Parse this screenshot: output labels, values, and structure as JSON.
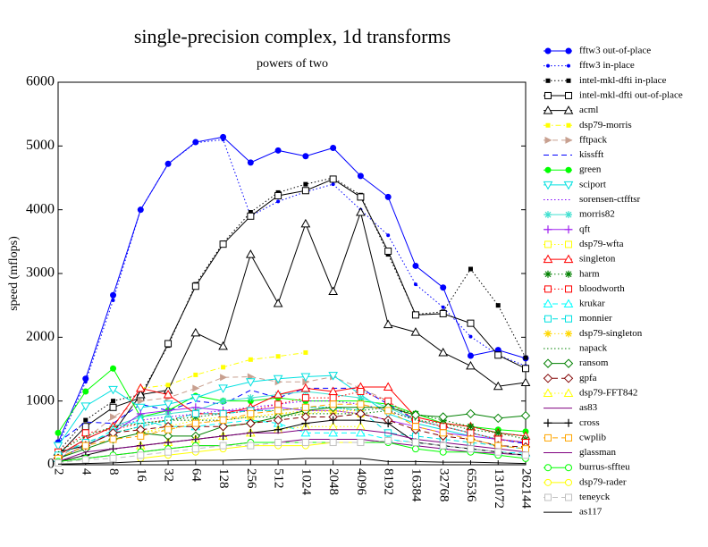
{
  "chart_data": {
    "type": "line",
    "title": "single-precision complex, 1d transforms",
    "subtitle": "powers of two",
    "ylabel": "speed (mflops)",
    "categories": [
      "2",
      "4",
      "8",
      "16",
      "32",
      "64",
      "128",
      "256",
      "512",
      "1024",
      "2048",
      "4096",
      "8192",
      "16384",
      "32768",
      "65536",
      "131072",
      "262144"
    ],
    "ylim": [
      0,
      6000
    ],
    "yticks": [
      0,
      1000,
      2000,
      3000,
      4000,
      5000,
      6000
    ],
    "grid": false,
    "legend": "right",
    "series": [
      {
        "name": "fftw3 out-of-place",
        "color": "#0000ff",
        "dash": "solid",
        "marker": "circle-filled",
        "values": [
          350,
          1350,
          2660,
          4000,
          4720,
          5060,
          5140,
          4740,
          4930,
          4840,
          4970,
          4530,
          4200,
          3120,
          2780,
          1710,
          1800,
          1670
        ]
      },
      {
        "name": "fftw3 in-place",
        "color": "#0000ff",
        "dash": "dotted",
        "marker": "dot",
        "values": [
          300,
          1300,
          2580,
          4000,
          4720,
          5050,
          5100,
          3900,
          4130,
          4280,
          4400,
          4000,
          3600,
          2830,
          2470,
          2010,
          1720,
          1550
        ]
      },
      {
        "name": "intel-mkl-dfti in-place",
        "color": "#000000",
        "dash": "dotted",
        "marker": "square-filled",
        "values": [
          200,
          700,
          1000,
          1100,
          1870,
          2830,
          3480,
          3960,
          4270,
          4400,
          4500,
          4230,
          3300,
          2360,
          2400,
          3070,
          2500,
          1680
        ]
      },
      {
        "name": "intel-mkl-dfti out-of-place",
        "color": "#000000",
        "dash": "solid",
        "marker": "square-open",
        "values": [
          150,
          600,
          900,
          1050,
          1900,
          2800,
          3460,
          3900,
          4220,
          4300,
          4480,
          4200,
          3350,
          2350,
          2370,
          2220,
          1720,
          1510
        ]
      },
      {
        "name": "acml",
        "color": "#000000",
        "dash": "solid",
        "marker": "triangle-open",
        "values": [
          200,
          300,
          500,
          1100,
          1170,
          2070,
          1860,
          3300,
          2530,
          3780,
          2720,
          3960,
          2200,
          2080,
          1760,
          1550,
          1230,
          1290
        ]
      },
      {
        "name": "dsp79-morris",
        "color": "#ffff00",
        "dash": "dashdot",
        "marker": "square-filled",
        "values": [
          null,
          null,
          null,
          1200,
          1250,
          1410,
          1530,
          1650,
          1700,
          1760,
          null,
          null,
          null,
          null,
          null,
          null,
          null,
          null
        ]
      },
      {
        "name": "fftpack",
        "color": "#c8a090",
        "dash": "dashed",
        "marker": "triangle-right",
        "values": [
          100,
          400,
          750,
          1000,
          1050,
          1200,
          1370,
          1380,
          1300,
          1300,
          1380,
          1200,
          1000,
          700,
          600,
          500,
          400,
          350
        ]
      },
      {
        "name": "kissfft",
        "color": "#0000ff",
        "dash": "dashed",
        "marker": "none",
        "values": [
          350,
          670,
          650,
          950,
          850,
          1000,
          950,
          1170,
          1050,
          1200,
          1200,
          1200,
          950,
          700,
          600,
          500,
          400,
          330
        ]
      },
      {
        "name": "green",
        "color": "#00ff00",
        "dash": "solid",
        "marker": "circle-filled",
        "values": [
          500,
          1150,
          1510,
          750,
          850,
          1080,
          1000,
          1000,
          1050,
          1000,
          1000,
          1000,
          950,
          800,
          650,
          600,
          550,
          520
        ]
      },
      {
        "name": "sciport",
        "color": "#00e0e0",
        "dash": "solid",
        "marker": "triangle-down-open",
        "values": [
          300,
          920,
          1180,
          900,
          950,
          1050,
          1200,
          1300,
          1350,
          1380,
          1400,
          1100,
          800,
          650,
          550,
          450,
          400,
          350
        ]
      },
      {
        "name": "sorensen-ctfftsr",
        "color": "#8000ff",
        "dash": "dotted",
        "marker": "none",
        "values": [
          150,
          400,
          600,
          700,
          750,
          800,
          850,
          900,
          950,
          1000,
          1000,
          950,
          850,
          700,
          600,
          500,
          400,
          350
        ]
      },
      {
        "name": "morris82",
        "color": "#40e0d0",
        "dash": "solid",
        "marker": "star",
        "values": [
          150,
          400,
          600,
          750,
          800,
          850,
          1000,
          1050,
          1100,
          1150,
          1100,
          1050,
          900,
          700,
          600,
          500,
          400,
          350
        ]
      },
      {
        "name": "qft",
        "color": "#a020f0",
        "dash": "solid",
        "marker": "plus",
        "values": [
          100,
          300,
          500,
          800,
          850,
          900,
          850,
          850,
          900,
          850,
          850,
          800,
          700,
          600,
          500,
          450,
          400,
          350
        ]
      },
      {
        "name": "dsp79-wfta",
        "color": "#ffff00",
        "dash": "dotted",
        "marker": "square-open",
        "values": [
          null,
          null,
          null,
          500,
          600,
          700,
          750,
          750,
          800,
          800,
          850,
          800,
          null,
          null,
          null,
          null,
          null,
          null
        ]
      },
      {
        "name": "singleton",
        "color": "#ff0000",
        "dash": "solid",
        "marker": "triangle-open",
        "values": [
          150,
          400,
          600,
          1200,
          1100,
          800,
          800,
          900,
          1100,
          1200,
          1150,
          1220,
          1220,
          750,
          650,
          600,
          500,
          450
        ]
      },
      {
        "name": "harm",
        "color": "#008000",
        "dash": "dotted",
        "marker": "star",
        "values": [
          100,
          300,
          500,
          600,
          700,
          750,
          800,
          850,
          850,
          900,
          900,
          850,
          900,
          800,
          700,
          600,
          500,
          400
        ]
      },
      {
        "name": "bloodworth",
        "color": "#ff0000",
        "dash": "dotted",
        "marker": "square-open",
        "values": [
          200,
          500,
          550,
          650,
          700,
          800,
          800,
          850,
          950,
          1050,
          1050,
          1150,
          1000,
          700,
          600,
          500,
          400,
          350
        ]
      },
      {
        "name": "krukar",
        "color": "#00ffff",
        "dash": "dashed",
        "marker": "triangle-open",
        "values": [
          100,
          300,
          550,
          700,
          600,
          600,
          650,
          700,
          650,
          500,
          500,
          500,
          400,
          350,
          300,
          250,
          200,
          180
        ]
      },
      {
        "name": "monnier",
        "color": "#00e0e0",
        "dash": "dashed",
        "marker": "square-open",
        "values": [
          150,
          350,
          500,
          600,
          700,
          800,
          800,
          850,
          850,
          900,
          900,
          850,
          500,
          450,
          400,
          350,
          300,
          250
        ]
      },
      {
        "name": "dsp79-singleton",
        "color": "#ffd700",
        "dash": "dotted",
        "marker": "star",
        "values": [
          null,
          null,
          null,
          500,
          550,
          650,
          700,
          750,
          800,
          850,
          850,
          850,
          null,
          null,
          null,
          null,
          null,
          null
        ]
      },
      {
        "name": "napack",
        "color": "#008000",
        "dash": "dotted",
        "marker": "none",
        "values": [
          200,
          450,
          600,
          650,
          700,
          700,
          700,
          750,
          750,
          800,
          800,
          800,
          850,
          700,
          650,
          550,
          500,
          450
        ]
      },
      {
        "name": "ransom",
        "color": "#008000",
        "dash": "solid",
        "marker": "diamond-open",
        "values": [
          100,
          250,
          400,
          500,
          450,
          450,
          600,
          650,
          750,
          850,
          900,
          900,
          900,
          780,
          750,
          800,
          730,
          770
        ]
      },
      {
        "name": "gpfa",
        "color": "#800000",
        "dash": "dashed",
        "marker": "diamond-open",
        "values": [
          100,
          300,
          500,
          550,
          600,
          600,
          600,
          650,
          700,
          750,
          750,
          800,
          700,
          550,
          450,
          400,
          300,
          280
        ]
      },
      {
        "name": "dsp79-FFT842",
        "color": "#ffff00",
        "dash": "dotted",
        "marker": "triangle-open",
        "values": [
          null,
          null,
          null,
          300,
          350,
          400,
          450,
          500,
          550,
          600,
          600,
          600,
          null,
          null,
          null,
          null,
          null,
          null
        ]
      },
      {
        "name": "as83",
        "color": "#800080",
        "dash": "solid",
        "marker": "none",
        "values": [
          50,
          100,
          150,
          200,
          250,
          300,
          300,
          350,
          350,
          400,
          400,
          400,
          350,
          300,
          250,
          200,
          180,
          150
        ]
      },
      {
        "name": "cross",
        "color": "#000000",
        "dash": "solid",
        "marker": "plus",
        "values": [
          50,
          150,
          250,
          300,
          350,
          400,
          450,
          500,
          550,
          650,
          700,
          700,
          650,
          350,
          300,
          250,
          200,
          150
        ]
      },
      {
        "name": "cwplib",
        "color": "#ffa500",
        "dash": "dashed",
        "marker": "square-open",
        "values": [
          100,
          300,
          400,
          450,
          550,
          650,
          700,
          800,
          850,
          900,
          950,
          950,
          850,
          600,
          500,
          400,
          300,
          250
        ]
      },
      {
        "name": "glassman",
        "color": "#800080",
        "dash": "solid",
        "marker": "none",
        "values": [
          50,
          200,
          250,
          300,
          350,
          400,
          450,
          500,
          500,
          550,
          550,
          550,
          500,
          400,
          350,
          300,
          250,
          200
        ]
      },
      {
        "name": "burrus-sffteu",
        "color": "#00ff00",
        "dash": "solid",
        "marker": "circle-open",
        "values": [
          50,
          100,
          150,
          200,
          250,
          300,
          300,
          350,
          350,
          350,
          350,
          350,
          350,
          250,
          200,
          200,
          150,
          100
        ]
      },
      {
        "name": "dsp79-rader",
        "color": "#ffff00",
        "dash": "solid",
        "marker": "circle-open",
        "values": [
          null,
          null,
          null,
          100,
          150,
          200,
          250,
          300,
          300,
          300,
          350,
          350,
          null,
          null,
          null,
          null,
          null,
          null
        ]
      },
      {
        "name": "teneyck",
        "color": "#c0c0c0",
        "dash": "dashed",
        "marker": "square-open",
        "values": [
          30,
          80,
          100,
          150,
          200,
          250,
          300,
          300,
          350,
          350,
          350,
          350,
          380,
          350,
          300,
          250,
          200,
          150
        ]
      },
      {
        "name": "as117",
        "color": "#000000",
        "dash": "solid",
        "marker": "none",
        "values": [
          10,
          20,
          30,
          50,
          60,
          70,
          70,
          80,
          80,
          100,
          100,
          100,
          50,
          50,
          40,
          40,
          30,
          20
        ]
      }
    ]
  }
}
